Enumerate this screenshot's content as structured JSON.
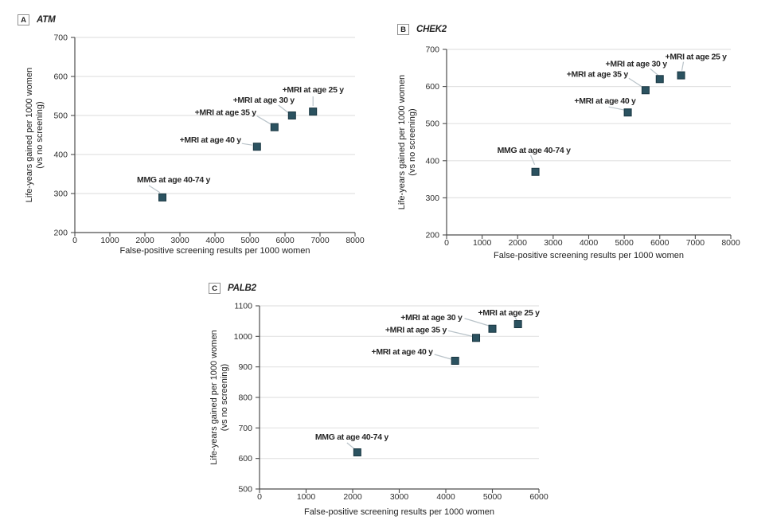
{
  "colors": {
    "background": "#ffffff",
    "gridline": "#e2e2e2",
    "axis_line": "#4d4d4d",
    "tick_text": "#2e2e2e",
    "title_text": "#222222",
    "annotation_text": "#272727",
    "leader_line": "#b9c3c9",
    "marker_fill": "#2b5260",
    "marker_stroke": "#193641"
  },
  "chart_data": [
    {
      "type": "scatter",
      "panel_letter": "A",
      "title": "ATM",
      "xlabel": "False-positive screening results per 1000 women",
      "ylabel": [
        "Life-years gained per 1000 women",
        "(vs no screening)"
      ],
      "xlim": [
        0,
        8000
      ],
      "ylim": [
        200,
        700
      ],
      "xticks": [
        0,
        1000,
        2000,
        3000,
        4000,
        5000,
        6000,
        7000,
        8000
      ],
      "yticks": [
        200,
        300,
        400,
        500,
        600,
        700
      ],
      "grid": "horizontal",
      "points": [
        {
          "label": "MMG at age 40-74 y",
          "x": 2500,
          "y": 290,
          "anchor": "start",
          "label_offset": [
            -32,
            -19
          ],
          "leader": [
            -17,
            -15,
            -3,
            -6
          ]
        },
        {
          "label": "+MRI at age 40 y",
          "x": 5200,
          "y": 420,
          "anchor": "end",
          "label_offset": [
            -20,
            -5
          ],
          "leader": [
            -19,
            -4,
            -6,
            -2
          ]
        },
        {
          "label": "+MRI at age 35 y",
          "x": 5700,
          "y": 470,
          "anchor": "end",
          "label_offset": [
            -23,
            -15
          ],
          "leader": [
            -22,
            -14,
            -5,
            -4
          ]
        },
        {
          "label": "+MRI at age 30 y",
          "x": 6200,
          "y": 500,
          "anchor": "end",
          "label_offset": [
            3,
            -16
          ],
          "leader": [
            -17,
            -13,
            -4,
            -3
          ]
        },
        {
          "label": "+MRI at age 25 y",
          "x": 6800,
          "y": 510,
          "anchor": "middle",
          "label_offset": [
            0,
            -24
          ],
          "leader": [
            0,
            -19,
            0,
            -7
          ]
        }
      ]
    },
    {
      "type": "scatter",
      "panel_letter": "B",
      "title": "CHEK2",
      "xlabel": "False-positive screening results per 1000 women",
      "ylabel": [
        "Life-years gained per 1000 women",
        "(vs no screening)"
      ],
      "xlim": [
        0,
        8000
      ],
      "ylim": [
        200,
        700
      ],
      "xticks": [
        0,
        1000,
        2000,
        3000,
        4000,
        5000,
        6000,
        7000,
        8000
      ],
      "yticks": [
        200,
        300,
        400,
        500,
        600,
        700
      ],
      "grid": "horizontal",
      "points": [
        {
          "label": "MMG at age 40-74 y",
          "x": 2500,
          "y": 370,
          "anchor": "start",
          "label_offset": [
            -48,
            -24
          ],
          "leader": [
            -6,
            -21,
            -1,
            -9
          ]
        },
        {
          "label": "+MRI at age 40 y",
          "x": 5100,
          "y": 530,
          "anchor": "end",
          "label_offset": [
            10,
            -11
          ],
          "leader": [
            -24,
            -7,
            -4,
            -3
          ]
        },
        {
          "label": "+MRI at age 35 y",
          "x": 5600,
          "y": 590,
          "anchor": "end",
          "label_offset": [
            -22,
            -17
          ],
          "leader": [
            -21,
            -15,
            -4,
            -4
          ]
        },
        {
          "label": "+MRI at age 30 y",
          "x": 6000,
          "y": 620,
          "anchor": "end",
          "label_offset": [
            9,
            -16
          ],
          "leader": [
            -12,
            -13,
            -1,
            -4
          ]
        },
        {
          "label": "+MRI at age 25 y",
          "x": 6600,
          "y": 630,
          "anchor": "start",
          "label_offset": [
            -20,
            -20
          ],
          "leader": [
            3,
            -17,
            1,
            -6
          ]
        }
      ]
    },
    {
      "type": "scatter",
      "panel_letter": "C",
      "title": "PALB2",
      "xlabel": "False-positive screening results per 1000 women",
      "ylabel": [
        "Life-years gained per 1000 women",
        "(vs no screening)"
      ],
      "xlim": [
        0,
        6000
      ],
      "ylim": [
        500,
        1100
      ],
      "xticks": [
        0,
        1000,
        2000,
        3000,
        4000,
        5000,
        6000
      ],
      "yticks": [
        500,
        600,
        700,
        800,
        900,
        1000,
        1100
      ],
      "grid": "horizontal",
      "points": [
        {
          "label": "MMG at age 40-74 y",
          "x": 2100,
          "y": 620,
          "anchor": "start",
          "label_offset": [
            -53,
            -16
          ],
          "leader": [
            -13,
            -12,
            -2,
            -3
          ]
        },
        {
          "label": "+MRI at age 40 y",
          "x": 4200,
          "y": 920,
          "anchor": "end",
          "label_offset": [
            -28,
            -8
          ],
          "leader": [
            -26,
            -8,
            -5,
            -2
          ]
        },
        {
          "label": "+MRI at age 35 y",
          "x": 4650,
          "y": 995,
          "anchor": "end",
          "label_offset": [
            -37,
            -7
          ],
          "leader": [
            -35,
            -9,
            -5,
            -2
          ]
        },
        {
          "label": "+MRI at age 30 y",
          "x": 5000,
          "y": 1025,
          "anchor": "end",
          "label_offset": [
            -38,
            -11
          ],
          "leader": [
            -35,
            -13,
            -2,
            -3
          ]
        },
        {
          "label": "+MRI at age 25 y",
          "x": 5550,
          "y": 1040,
          "anchor": "end",
          "label_offset": [
            27,
            -11
          ],
          "leader": [
            -4,
            -9,
            -1,
            -4
          ]
        }
      ]
    }
  ]
}
